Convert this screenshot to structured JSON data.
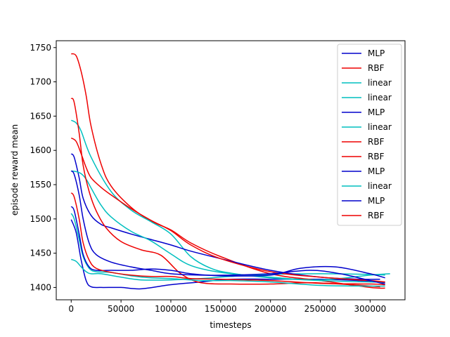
{
  "chart_data": {
    "type": "line",
    "xlabel": "timesteps",
    "ylabel": "episode reward mean",
    "xlim": [
      -15000,
      335000
    ],
    "ylim": [
      1382,
      1760
    ],
    "xticks": [
      0,
      50000,
      100000,
      150000,
      200000,
      250000,
      300000
    ],
    "xtick_labels": [
      "0",
      "50000",
      "100000",
      "150000",
      "200000",
      "250000",
      "300000"
    ],
    "yticks": [
      1400,
      1450,
      1500,
      1550,
      1600,
      1650,
      1700,
      1750
    ],
    "ytick_labels": [
      "1400",
      "1450",
      "1500",
      "1550",
      "1600",
      "1650",
      "1700",
      "1750"
    ],
    "grid": false,
    "legend_position": "top-right",
    "colors": {
      "MLP": "#0000cc",
      "RBF": "#ee0000",
      "linear": "#00bfbf"
    },
    "series": [
      {
        "name": "MLP",
        "color": "#0000cc",
        "x": [
          0,
          5000,
          10000,
          15000,
          20000,
          30000,
          50000,
          70000,
          100000,
          130000,
          160000,
          200000,
          250000,
          290000,
          315000
        ],
        "y": [
          1499,
          1480,
          1440,
          1410,
          1401,
          1400,
          1400,
          1398,
          1404,
          1408,
          1412,
          1412,
          1412,
          1410,
          1407
        ]
      },
      {
        "name": "RBF",
        "color": "#ee0000",
        "x": [
          0,
          5000,
          10000,
          15000,
          20000,
          30000,
          40000,
          60000,
          80000,
          100000,
          120000,
          150000,
          200000,
          250000,
          300000,
          315000
        ],
        "y": [
          1741,
          1738,
          1715,
          1680,
          1635,
          1580,
          1548,
          1517,
          1497,
          1484,
          1465,
          1445,
          1420,
          1410,
          1400,
          1399
        ]
      },
      {
        "name": "linear",
        "color": "#00bfbf",
        "x": [
          0,
          5000,
          10000,
          20000,
          40000,
          60000,
          80000,
          100000,
          120000,
          140000,
          160000,
          200000,
          250000,
          300000,
          315000
        ],
        "y": [
          1644,
          1640,
          1628,
          1590,
          1540,
          1513,
          1496,
          1478,
          1445,
          1428,
          1421,
          1414,
          1410,
          1408,
          1408
        ]
      },
      {
        "name": "linear",
        "color": "#00bfbf",
        "x": [
          0,
          5000,
          10000,
          15000,
          20000,
          30000,
          50000,
          70000,
          100000,
          130000,
          160000,
          200000,
          250000,
          300000,
          315000
        ],
        "y": [
          1441,
          1438,
          1430,
          1423,
          1420,
          1420,
          1415,
          1411,
          1411,
          1413,
          1416,
          1419,
          1420,
          1419,
          1418
        ]
      },
      {
        "name": "MLP",
        "color": "#0000cc",
        "x": [
          0,
          3000,
          8000,
          12000,
          20000,
          30000,
          40000,
          60000,
          80000,
          100000,
          120000,
          150000,
          200000,
          250000,
          290000,
          310000
        ],
        "y": [
          1595,
          1590,
          1560,
          1530,
          1505,
          1492,
          1487,
          1478,
          1470,
          1462,
          1453,
          1442,
          1425,
          1415,
          1412,
          1412
        ]
      },
      {
        "name": "linear",
        "color": "#00bfbf",
        "x": [
          0,
          5000,
          10000,
          15000,
          20000,
          30000,
          40000,
          60000,
          80000,
          100000,
          120000,
          150000,
          200000,
          250000,
          300000,
          320000
        ],
        "y": [
          1570,
          1569,
          1566,
          1558,
          1545,
          1520,
          1503,
          1482,
          1468,
          1449,
          1432,
          1422,
          1415,
          1411,
          1418,
          1420
        ]
      },
      {
        "name": "RBF",
        "color": "#ee0000",
        "x": [
          0,
          3000,
          8000,
          12000,
          18000,
          25000,
          35000,
          50000,
          70000,
          90000,
          110000,
          130000,
          160000,
          200000,
          240000,
          280000,
          310000
        ],
        "y": [
          1676,
          1670,
          1625,
          1578,
          1540,
          1512,
          1487,
          1467,
          1455,
          1447,
          1420,
          1407,
          1405,
          1405,
          1407,
          1404,
          1401
        ]
      },
      {
        "name": "RBF",
        "color": "#ee0000",
        "x": [
          0,
          5000,
          10000,
          15000,
          20000,
          30000,
          40000,
          60000,
          80000,
          100000,
          120000,
          150000,
          200000,
          250000,
          300000,
          315000
        ],
        "y": [
          1618,
          1613,
          1595,
          1575,
          1560,
          1546,
          1535,
          1515,
          1498,
          1483,
          1462,
          1442,
          1423,
          1415,
          1410,
          1408
        ]
      },
      {
        "name": "MLP",
        "color": "#0000cc",
        "x": [
          0,
          3000,
          8000,
          12000,
          18000,
          25000,
          40000,
          60000,
          80000,
          100000,
          130000,
          160000,
          200000,
          240000,
          270000,
          300000,
          315000
        ],
        "y": [
          1570,
          1565,
          1535,
          1500,
          1465,
          1448,
          1437,
          1430,
          1425,
          1420,
          1418,
          1418,
          1420,
          1425,
          1420,
          1410,
          1405
        ]
      },
      {
        "name": "linear",
        "color": "#00bfbf",
        "x": [
          0,
          3000,
          8000,
          12000,
          18000,
          25000,
          40000,
          60000,
          80000,
          100000,
          130000,
          160000,
          200000,
          250000,
          300000,
          315000
        ],
        "y": [
          1508,
          1500,
          1470,
          1445,
          1428,
          1423,
          1422,
          1417,
          1414,
          1413,
          1410,
          1410,
          1408,
          1403,
          1402,
          1402
        ]
      },
      {
        "name": "MLP",
        "color": "#0000cc",
        "x": [
          0,
          3000,
          8000,
          12000,
          18000,
          25000,
          40000,
          60000,
          80000,
          100000,
          120000,
          150000,
          200000,
          230000,
          265000,
          300000,
          315000
        ],
        "y": [
          1518,
          1512,
          1478,
          1448,
          1430,
          1425,
          1425,
          1425,
          1427,
          1425,
          1420,
          1417,
          1418,
          1428,
          1430,
          1420,
          1414
        ]
      },
      {
        "name": "RBF",
        "color": "#ee0000",
        "x": [
          0,
          3000,
          8000,
          12000,
          18000,
          25000,
          40000,
          60000,
          80000,
          100000,
          120000,
          150000,
          200000,
          250000,
          300000,
          315000
        ],
        "y": [
          1538,
          1532,
          1500,
          1465,
          1440,
          1428,
          1422,
          1418,
          1416,
          1416,
          1413,
          1412,
          1410,
          1406,
          1405,
          1404
        ]
      }
    ]
  }
}
